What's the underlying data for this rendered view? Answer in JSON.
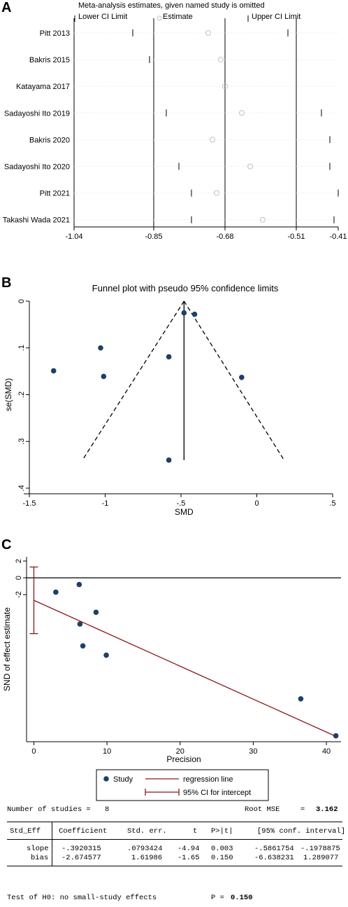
{
  "panels": {
    "a": "A",
    "b": "B",
    "c": "C"
  },
  "chart_data": [
    {
      "type": "scatter",
      "title": "Meta-analysis estimates, given named study is omitted",
      "legend": [
        "Lower CI Limit",
        "Estimate",
        "Upper CI Limit"
      ],
      "xlim": [
        -1.04,
        -0.41
      ],
      "xticks": [
        -1.04,
        -0.85,
        -0.68,
        -0.51,
        -0.41
      ],
      "xtick_labels": [
        "-1.04",
        "-0.85",
        "-0.68",
        "-0.51",
        "-0.41"
      ],
      "reference_lines": [
        -0.85,
        -0.68,
        -0.51
      ],
      "studies": [
        {
          "name": "Pitt 2013",
          "lower": -0.9,
          "estimate": -0.72,
          "upper": -0.53
        },
        {
          "name": "Bakris 2015",
          "lower": -0.86,
          "estimate": -0.69,
          "upper": -0.51
        },
        {
          "name": "Katayama 2017",
          "lower": -0.85,
          "estimate": -0.68,
          "upper": -0.51
        },
        {
          "name": "Sadayoshi Ito 2019",
          "lower": -0.82,
          "estimate": -0.64,
          "upper": -0.45
        },
        {
          "name": "Bakris 2020",
          "lower": -1.04,
          "estimate": -0.71,
          "upper": -0.43
        },
        {
          "name": "Sadayoshi Ito 2020",
          "lower": -0.79,
          "estimate": -0.62,
          "upper": -0.43
        },
        {
          "name": "Pitt 2021",
          "lower": -0.76,
          "estimate": -0.7,
          "upper": -0.41
        },
        {
          "name": "Takashi Wada 2021",
          "lower": -0.76,
          "estimate": -0.59,
          "upper": -0.42
        }
      ]
    },
    {
      "type": "scatter",
      "title": "Funnel plot with pseudo 95% confidence limits",
      "xlabel": "SMD",
      "ylabel": "se(SMD)",
      "xlim": [
        -1.5,
        0.5
      ],
      "ylim": [
        0,
        0.4
      ],
      "y_reversed": true,
      "xticks": [
        -1.5,
        -1,
        -0.5,
        0,
        0.5
      ],
      "xtick_labels": [
        "-1.5",
        "-1",
        "-.5",
        "0",
        ".5"
      ],
      "yticks": [
        0,
        0.1,
        0.2,
        0.3,
        0.4
      ],
      "ytick_labels": [
        "0",
        ".1",
        ".2",
        ".3",
        ".4"
      ],
      "pooled_smd": -0.48,
      "funnel": {
        "apex": [
          -0.48,
          0
        ],
        "left_end": [
          -1.15,
          0.34
        ],
        "right_end": [
          0.18,
          0.34
        ]
      },
      "points": [
        {
          "x": -0.48,
          "y": 0.025
        },
        {
          "x": -0.41,
          "y": 0.028
        },
        {
          "x": -1.03,
          "y": 0.1
        },
        {
          "x": -0.58,
          "y": 0.119
        },
        {
          "x": -1.34,
          "y": 0.149
        },
        {
          "x": -1.01,
          "y": 0.161
        },
        {
          "x": -0.1,
          "y": 0.163
        },
        {
          "x": -0.58,
          "y": 0.34
        }
      ]
    },
    {
      "type": "scatter",
      "xlabel": "Precision",
      "ylabel": "SND of effect estimate",
      "xlim": [
        -1,
        42
      ],
      "ylim": [
        -19.5,
        2.5
      ],
      "xticks": [
        0,
        10,
        20,
        30,
        40
      ],
      "xtick_labels": [
        "0",
        "10",
        "20",
        "30",
        "40"
      ],
      "yticks": [
        2,
        0,
        -2
      ],
      "ytick_labels": [
        "2",
        "0",
        "-2"
      ],
      "points": [
        {
          "x": 3.0,
          "y": -1.7
        },
        {
          "x": 6.2,
          "y": -0.8
        },
        {
          "x": 8.5,
          "y": -4.1
        },
        {
          "x": 6.3,
          "y": -5.5
        },
        {
          "x": 6.7,
          "y": -8.1
        },
        {
          "x": 9.9,
          "y": -9.2
        },
        {
          "x": 36.5,
          "y": -14.4
        },
        {
          "x": 41.3,
          "y": -18.8
        }
      ],
      "regression": {
        "intercept": -2.674577,
        "slope": -0.3920315,
        "x_range": [
          0,
          41.3
        ]
      },
      "intercept_ci": [
        -6.638231,
        1.289077
      ],
      "legend": [
        "Study",
        "regression line",
        "95% CI for intercept"
      ]
    }
  ],
  "stats": {
    "n_label": "Number of studies =",
    "n_value": "8",
    "rmse_label": "Root MSE",
    "rmse_eq": "=",
    "rmse_value": "3.162",
    "header": {
      "col0": "Std_Eff",
      "col1": "Coefficient",
      "col2": "Std. err.",
      "col3": "t",
      "col4": "P>|t|",
      "col5": "[95% conf. interval]"
    },
    "rows": [
      {
        "name": "slope",
        "coef": "-.3920315",
        "se": ".0793424",
        "t": "-4.94",
        "p": "0.003",
        "lo": "-.5861754",
        "hi": "-.1978875"
      },
      {
        "name": "bias",
        "coef": "-2.674577",
        "se": "1.61986",
        "t": "-1.65",
        "p": "0.150",
        "lo": "-6.638231",
        "hi": "1.289077"
      }
    ],
    "test_label": "Test of H0: no small-study effects",
    "p_label": "P =",
    "p_value": "0.150"
  },
  "colors": {
    "marker": "#1f3f66",
    "regression": "#8b1a1a",
    "line": "#000000",
    "hollow": "#bfbfbf"
  }
}
